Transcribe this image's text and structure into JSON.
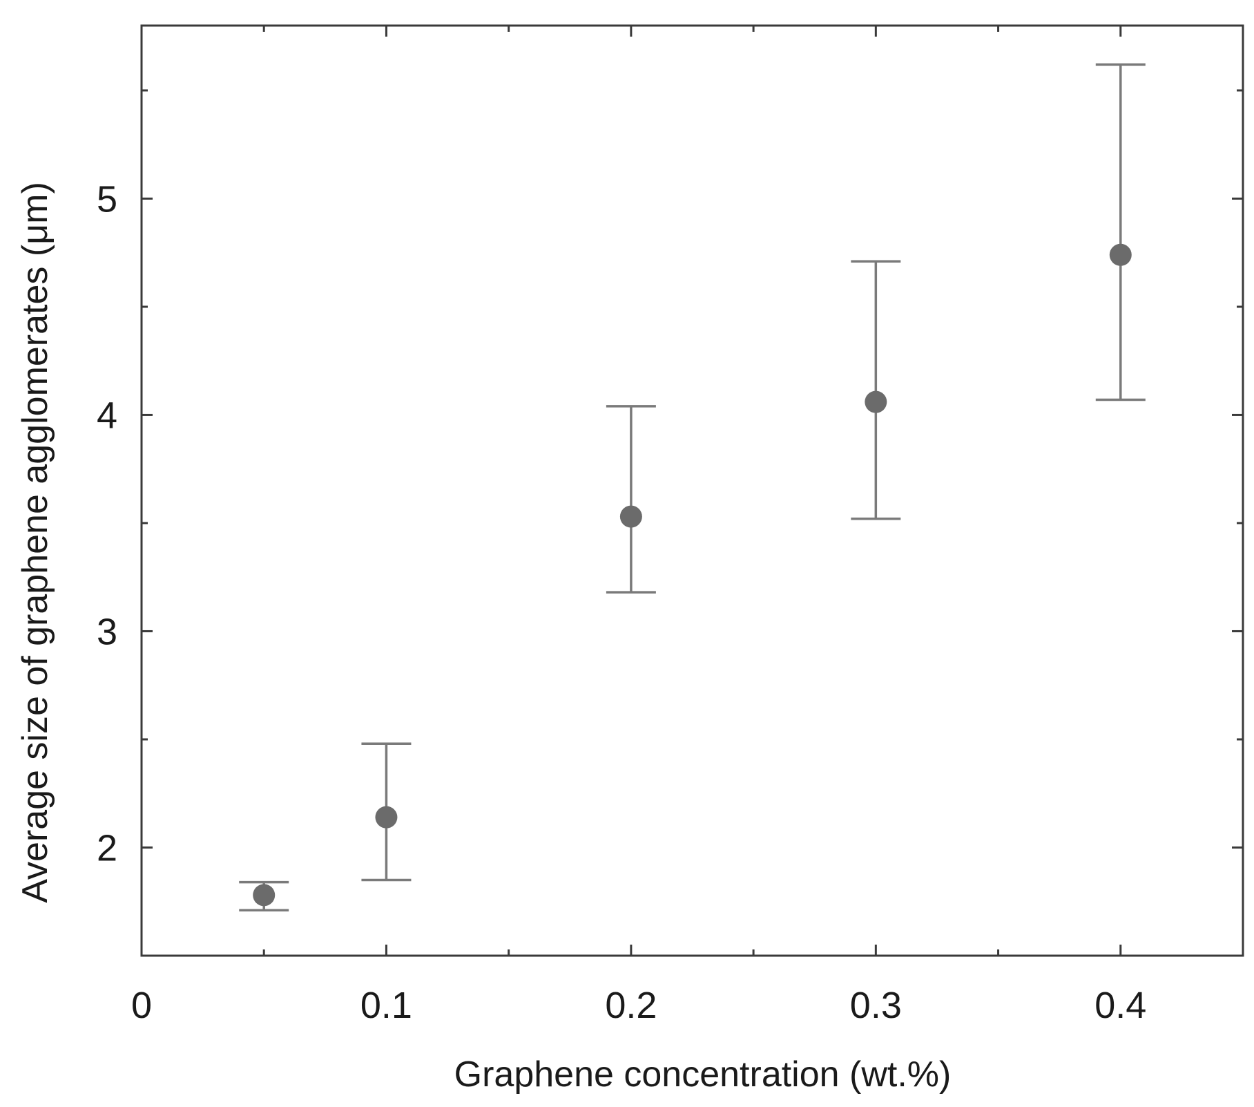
{
  "chart_data": {
    "type": "scatter",
    "title": "",
    "xlabel": "Graphene concentration (wt.%)",
    "ylabel": "Average size of graphene agglomerates (μm)",
    "xlim": [
      0,
      0.45
    ],
    "ylim": [
      1.5,
      5.8
    ],
    "x_ticks": [
      0,
      0.1,
      0.2,
      0.3,
      0.4
    ],
    "x_tick_labels": [
      "0",
      "0.1",
      "0.2",
      "0.3",
      "0.4"
    ],
    "x_minor_ticks": [
      0.05,
      0.15,
      0.25,
      0.35
    ],
    "y_ticks": [
      2,
      3,
      4,
      5
    ],
    "y_tick_labels": [
      "2",
      "3",
      "4",
      "5"
    ],
    "y_minor_ticks": [
      2.5,
      3.5,
      4.5,
      5.5
    ],
    "grid": false,
    "legend": "none",
    "series": [
      {
        "x": [
          0.05,
          0.1,
          0.2,
          0.3,
          0.4
        ],
        "y": [
          1.78,
          2.14,
          3.53,
          4.06,
          4.74
        ],
        "error_low": [
          1.71,
          1.85,
          3.18,
          3.52,
          4.07
        ],
        "error_high": [
          1.84,
          2.48,
          4.04,
          4.71,
          5.62
        ],
        "color": "#6b6b6b",
        "errorbar_color": "#7a7a7a"
      }
    ]
  }
}
